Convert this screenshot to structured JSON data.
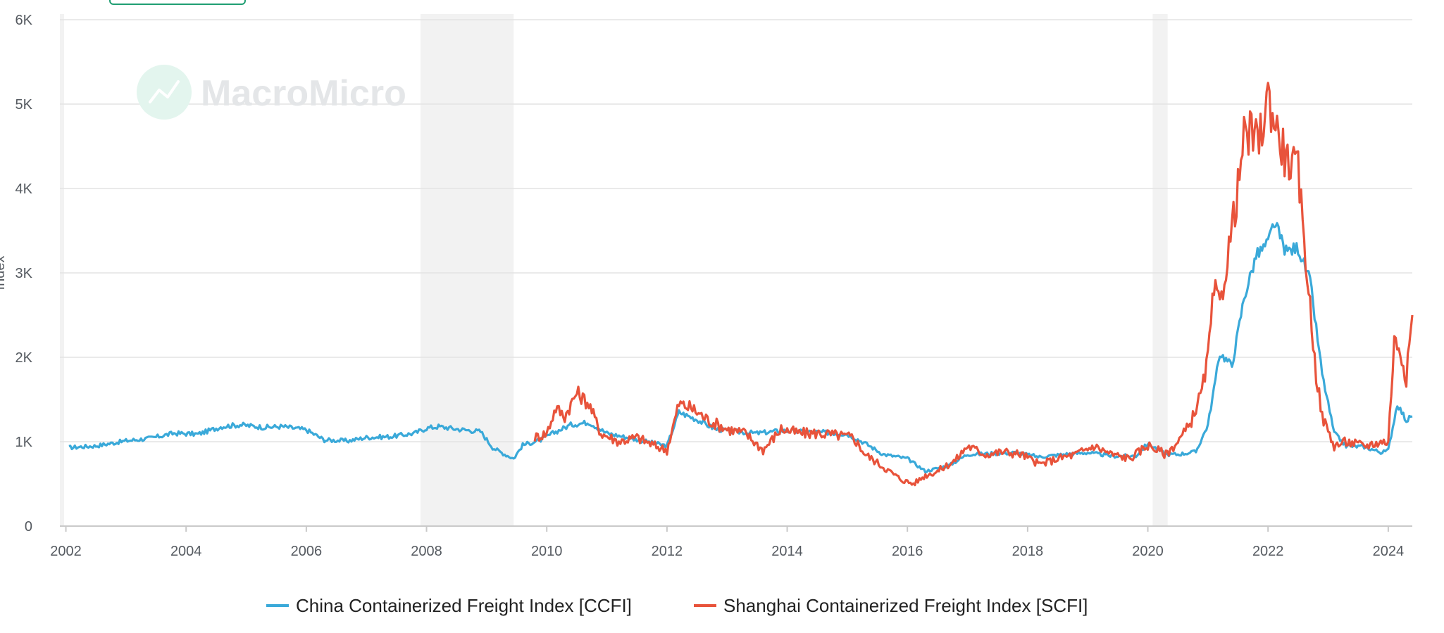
{
  "watermark": {
    "text": "MacroMicro",
    "icon": "macromicro-logo-icon"
  },
  "colors": {
    "ccfi": "#3aa9d9",
    "scfi": "#e8533b",
    "recession": "#f2f2f2",
    "grid": "#e3e3e3",
    "watermark": "#e4e6e8",
    "badge": "#1f9e72"
  },
  "chart_data": {
    "type": "line",
    "title": "",
    "xlabel": "",
    "ylabel": "Index",
    "xlim": [
      2001.9,
      2024.4
    ],
    "ylim": [
      0,
      6000
    ],
    "grid": true,
    "legend_position": "bottom",
    "x_ticks": [
      2002,
      2004,
      2006,
      2008,
      2010,
      2012,
      2014,
      2016,
      2018,
      2020,
      2022,
      2024
    ],
    "x_tick_labels": [
      "2002",
      "2004",
      "2006",
      "2008",
      "2010",
      "2012",
      "2014",
      "2016",
      "2018",
      "2020",
      "2022",
      "2024"
    ],
    "y_ticks": [
      0,
      1000,
      2000,
      3000,
      4000,
      5000,
      6000
    ],
    "y_tick_labels": [
      "0",
      "1K",
      "2K",
      "3K",
      "4K",
      "5K",
      "6K"
    ],
    "recession_bands": [
      [
        2001.9,
        2001.97
      ],
      [
        2007.9,
        2009.45
      ],
      [
        2020.08,
        2020.33
      ]
    ],
    "series": [
      {
        "name": "China Containerized Freight Index [CCFI]",
        "color": "#3aa9d9",
        "x": [
          2002.05,
          2002.5,
          2003.0,
          2003.4,
          2003.8,
          2004.2,
          2004.6,
          2004.9,
          2005.3,
          2005.6,
          2006.0,
          2006.3,
          2006.7,
          2007.0,
          2007.4,
          2007.8,
          2008.0,
          2008.2,
          2008.5,
          2008.9,
          2009.1,
          2009.3,
          2009.45,
          2009.6,
          2009.9,
          2010.1,
          2010.4,
          2010.7,
          2011.0,
          2011.4,
          2011.8,
          2012.0,
          2012.2,
          2012.5,
          2012.8,
          2013.1,
          2013.5,
          2013.9,
          2014.2,
          2014.6,
          2015.0,
          2015.3,
          2015.6,
          2016.0,
          2016.3,
          2016.7,
          2017.0,
          2017.4,
          2017.8,
          2018.2,
          2018.6,
          2019.0,
          2019.4,
          2019.8,
          2020.0,
          2020.3,
          2020.5,
          2020.8,
          2021.0,
          2021.2,
          2021.4,
          2021.6,
          2021.8,
          2022.0,
          2022.1,
          2022.3,
          2022.5,
          2022.7,
          2022.9,
          2023.1,
          2023.3,
          2023.6,
          2023.9,
          2024.0,
          2024.15,
          2024.3,
          2024.4
        ],
        "y": [
          930,
          950,
          1010,
          1040,
          1100,
          1090,
          1180,
          1200,
          1170,
          1180,
          1140,
          1020,
          1010,
          1050,
          1060,
          1100,
          1160,
          1180,
          1150,
          1120,
          930,
          850,
          800,
          960,
          1020,
          1100,
          1200,
          1230,
          1100,
          1040,
          980,
          950,
          1350,
          1260,
          1150,
          1120,
          1100,
          1130,
          1120,
          1110,
          1090,
          980,
          850,
          800,
          650,
          720,
          850,
          860,
          870,
          820,
          850,
          870,
          830,
          830,
          980,
          850,
          850,
          880,
          1200,
          2050,
          1900,
          2700,
          3200,
          3350,
          3600,
          3250,
          3300,
          2900,
          1800,
          1100,
          950,
          940,
          870,
          900,
          1450,
          1250,
          1300
        ]
      },
      {
        "name": "Shanghai Containerized Freight Index [SCFI]",
        "color": "#e8533b",
        "x": [
          2009.8,
          2010.0,
          2010.15,
          2010.3,
          2010.5,
          2010.7,
          2010.9,
          2011.2,
          2011.5,
          2011.8,
          2012.0,
          2012.2,
          2012.4,
          2012.7,
          2013.0,
          2013.3,
          2013.6,
          2013.9,
          2014.2,
          2014.5,
          2014.8,
          2015.1,
          2015.3,
          2015.6,
          2015.9,
          2016.1,
          2016.3,
          2016.5,
          2016.8,
          2017.0,
          2017.3,
          2017.6,
          2017.9,
          2018.2,
          2018.5,
          2018.8,
          2019.1,
          2019.4,
          2019.7,
          2020.0,
          2020.3,
          2020.5,
          2020.7,
          2020.9,
          2021.0,
          2021.1,
          2021.2,
          2021.35,
          2021.5,
          2021.6,
          2021.7,
          2021.85,
          2022.0,
          2022.15,
          2022.3,
          2022.5,
          2022.65,
          2022.8,
          2022.9,
          2023.1,
          2023.3,
          2023.6,
          2023.9,
          2024.0,
          2024.1,
          2024.2,
          2024.3,
          2024.4
        ],
        "y": [
          1050,
          1100,
          1400,
          1300,
          1580,
          1450,
          1100,
          1000,
          1050,
          950,
          900,
          1450,
          1400,
          1250,
          1150,
          1100,
          900,
          1150,
          1100,
          1100,
          1080,
          1050,
          850,
          700,
          550,
          500,
          600,
          650,
          780,
          950,
          850,
          880,
          850,
          730,
          800,
          850,
          950,
          850,
          800,
          960,
          850,
          1000,
          1200,
          1600,
          2000,
          2800,
          2600,
          3300,
          4000,
          4600,
          4650,
          4550,
          5100,
          4700,
          4350,
          4200,
          3000,
          1800,
          1300,
          950,
          1000,
          950,
          1000,
          1000,
          2200,
          2100,
          1750,
          2500
        ]
      }
    ]
  }
}
